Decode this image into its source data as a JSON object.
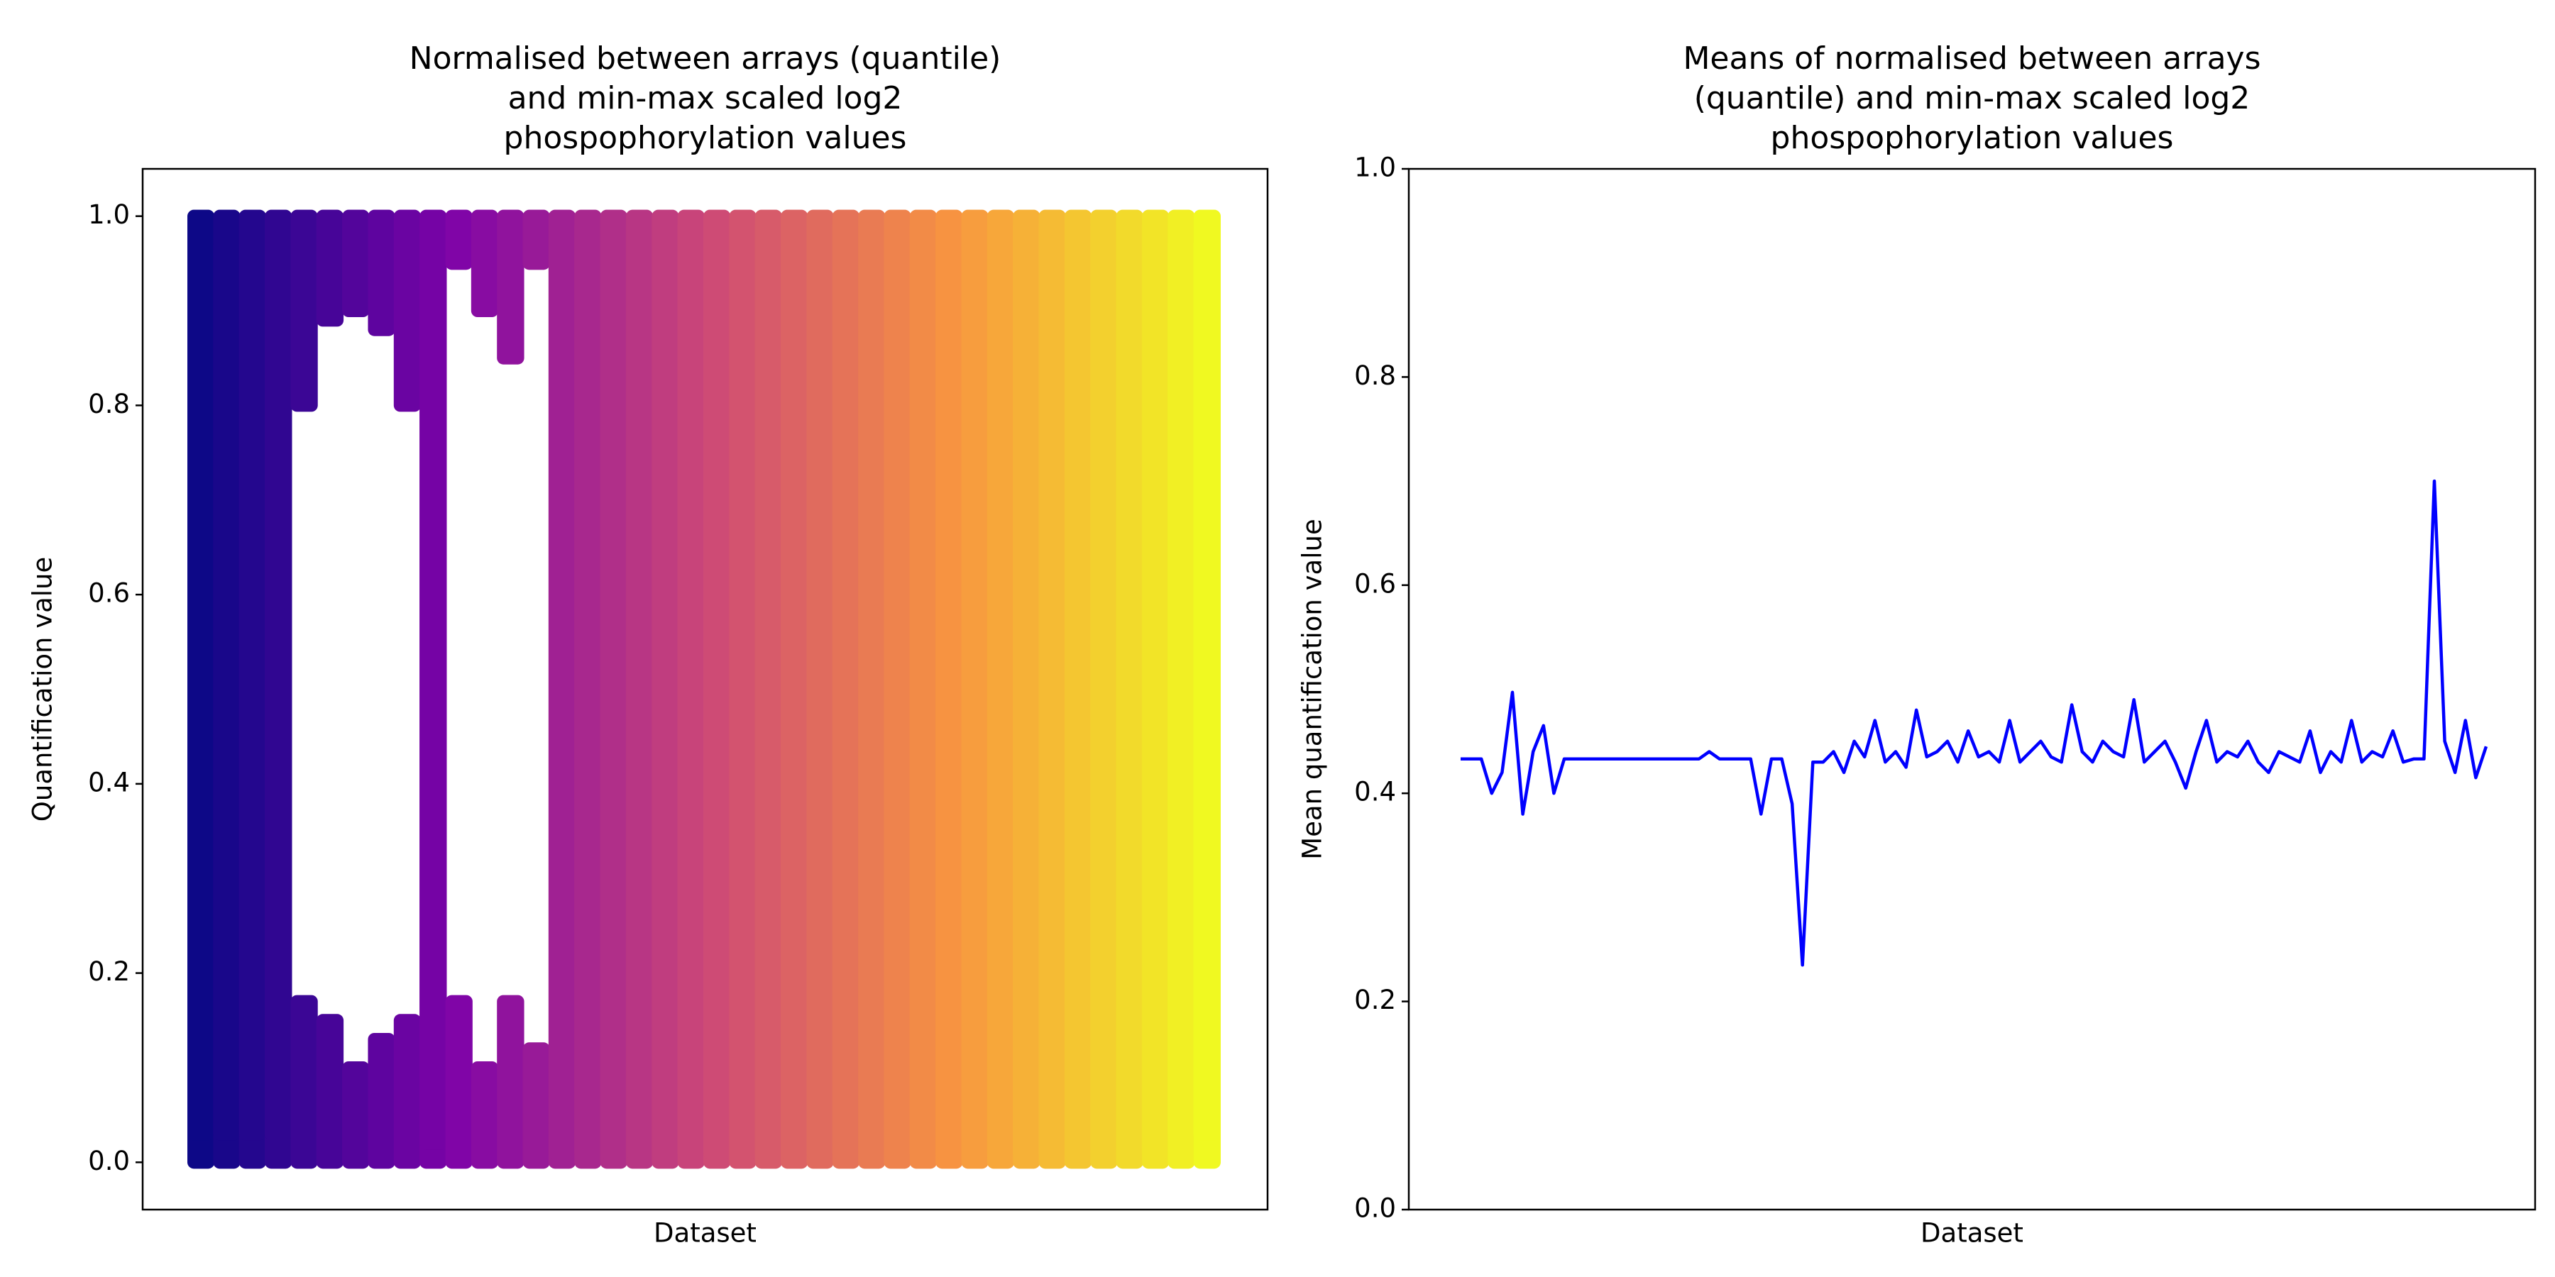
{
  "chart_data": [
    {
      "type": "band-scatter",
      "title": [
        "Normalised between arrays (quantile)",
        "and min-max scaled log2",
        "phospophorylation values"
      ],
      "xlabel": "Dataset",
      "ylabel": "Quantification value",
      "colormap": "plasma",
      "ylim": [
        -0.05,
        1.05
      ],
      "yticks": [
        {
          "value": 0,
          "label": "0.0"
        },
        0.2,
        0.4,
        0.6,
        0.8,
        {
          "value": 1,
          "label": "1.0"
        }
      ],
      "lower_top": [
        0.97,
        0.97,
        0.97,
        0.97,
        0.17,
        0.15,
        0.1,
        0.13,
        0.15,
        0.98,
        0.17,
        0.1,
        0.17,
        0.12,
        0.99,
        0.99,
        0.99,
        0.99,
        0.99,
        0.99,
        0.99,
        0.99,
        0.99,
        0.99,
        0.99,
        0.99,
        0.99,
        0.99,
        0.99,
        0.99,
        0.99,
        0.99,
        0.99,
        0.99,
        0.99,
        0.99,
        0.99,
        0.99,
        0.97,
        0.97
      ],
      "upper_bottom": [
        0.03,
        0.03,
        0.03,
        0.03,
        0.8,
        0.89,
        0.9,
        0.88,
        0.8,
        0.02,
        0.95,
        0.9,
        0.85,
        0.95,
        0.01,
        0.01,
        0.01,
        0.01,
        0.01,
        0.01,
        0.01,
        0.01,
        0.01,
        0.01,
        0.01,
        0.01,
        0.01,
        0.01,
        0.01,
        0.01,
        0.01,
        0.01,
        0.01,
        0.01,
        0.01,
        0.01,
        0.01,
        0.01,
        0.03,
        0.03
      ]
    },
    {
      "type": "line",
      "title": [
        "Means of normalised between arrays",
        "(quantile) and min-max scaled log2",
        "phospophorylation values"
      ],
      "xlabel": "Dataset",
      "ylabel": "Mean quantification value",
      "color": "#0000ff",
      "ylim": [
        0,
        1
      ],
      "yticks": [
        {
          "value": 0,
          "label": "0.0"
        },
        0.2,
        0.4,
        0.6,
        0.8,
        {
          "value": 1,
          "label": "1.0"
        }
      ],
      "values": [
        0.433,
        0.433,
        0.433,
        0.4,
        0.42,
        0.497,
        0.38,
        0.44,
        0.465,
        0.4,
        0.433,
        0.433,
        0.433,
        0.433,
        0.433,
        0.433,
        0.433,
        0.433,
        0.433,
        0.433,
        0.433,
        0.433,
        0.433,
        0.433,
        0.44,
        0.433,
        0.433,
        0.433,
        0.433,
        0.38,
        0.433,
        0.433,
        0.39,
        0.235,
        0.43,
        0.43,
        0.44,
        0.42,
        0.45,
        0.435,
        0.47,
        0.43,
        0.44,
        0.425,
        0.48,
        0.435,
        0.44,
        0.45,
        0.43,
        0.46,
        0.435,
        0.44,
        0.43,
        0.47,
        0.43,
        0.44,
        0.45,
        0.435,
        0.43,
        0.485,
        0.44,
        0.43,
        0.45,
        0.44,
        0.435,
        0.49,
        0.43,
        0.44,
        0.45,
        0.43,
        0.405,
        0.44,
        0.47,
        0.43,
        0.44,
        0.435,
        0.45,
        0.43,
        0.42,
        0.44,
        0.435,
        0.43,
        0.46,
        0.42,
        0.44,
        0.43,
        0.47,
        0.43,
        0.44,
        0.435,
        0.46,
        0.43,
        0.433,
        0.433,
        0.7,
        0.45,
        0.42,
        0.47,
        0.415,
        0.445
      ]
    }
  ]
}
